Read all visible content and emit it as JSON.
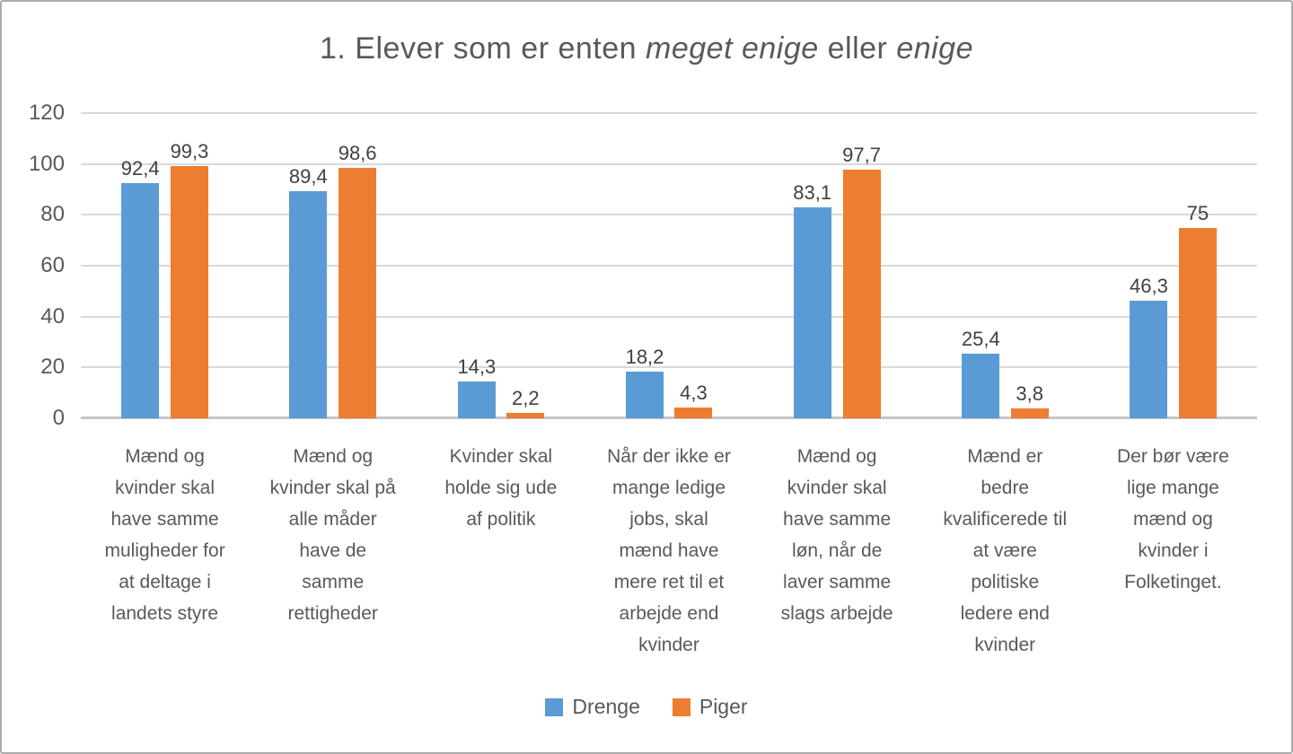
{
  "title": {
    "full_text": "1. Elever som er enten meget enige eller enige",
    "segments": [
      {
        "text": "1. Elever som er enten ",
        "italic": false
      },
      {
        "text": "meget enige",
        "italic": true
      },
      {
        "text": " eller ",
        "italic": false
      },
      {
        "text": "enige",
        "italic": true
      }
    ],
    "color": "#595959"
  },
  "chart_data": {
    "type": "bar",
    "title": "1. Elever som er enten meget enige eller enige",
    "categories": [
      "Mænd og kvinder skal have samme muligheder for at deltage i landets styre",
      "Mænd og kvinder skal på alle måder have de samme rettigheder",
      "Kvinder skal holde sig ude af politik",
      "Når der ikke er mange ledige jobs, skal mænd have mere ret til et arbejde end kvinder",
      "Mænd og kvinder skal have samme løn, når de laver samme slags arbejde",
      "Mænd er bedre kvalificerede til at være politiske ledere end kvinder",
      "Der bør være lige mange mænd og kvinder i Folketinget."
    ],
    "category_display_lines": [
      [
        "Mænd og",
        "kvinder skal",
        "have samme",
        "muligheder for",
        "at deltage i",
        "landets styre"
      ],
      [
        "Mænd og",
        "kvinder skal på",
        "alle måder",
        "have de",
        "samme",
        "rettigheder"
      ],
      [
        "Kvinder skal",
        "holde sig ude",
        "af politik"
      ],
      [
        "Når der ikke er",
        "mange ledige",
        "jobs, skal",
        "mænd have",
        "mere ret til et",
        "arbejde end",
        "kvinder"
      ],
      [
        "Mænd og",
        "kvinder skal",
        "have samme",
        "løn, når de",
        "laver samme",
        "slags arbejde"
      ],
      [
        "Mænd er",
        "bedre",
        "kvalificerede til",
        "at være",
        "politiske",
        "ledere end",
        "kvinder"
      ],
      [
        "Der bør være",
        "lige mange",
        "mænd og",
        "kvinder i",
        "Folketinget."
      ]
    ],
    "series": [
      {
        "name": "Drenge",
        "color": "#5B9BD5",
        "values": [
          92.4,
          89.4,
          14.3,
          18.2,
          83.1,
          25.4,
          46.3
        ],
        "labels": [
          "92,4",
          "89,4",
          "14,3",
          "18,2",
          "83,1",
          "25,4",
          "46,3"
        ]
      },
      {
        "name": "Piger",
        "color": "#ED7D31",
        "values": [
          99.3,
          98.6,
          2.2,
          4.3,
          97.7,
          3.8,
          75
        ],
        "labels": [
          "99,3",
          "98,6",
          "2,2",
          "4,3",
          "97,7",
          "3,8",
          "75"
        ]
      }
    ],
    "ylim": [
      0,
      120
    ],
    "yticks": [
      0,
      20,
      40,
      60,
      80,
      100,
      120
    ],
    "grid": true,
    "legend_position": "bottom",
    "decimal_separator": ","
  },
  "legend": {
    "items": [
      {
        "label": "Drenge",
        "color": "#5B9BD5"
      },
      {
        "label": "Piger",
        "color": "#ED7D31"
      }
    ]
  },
  "colors": {
    "gridline": "#d9d9d9",
    "baseline": "#c6c6c6",
    "axis_text": "#595959",
    "value_label_text": "#404040",
    "frame_border": "#acacac"
  }
}
